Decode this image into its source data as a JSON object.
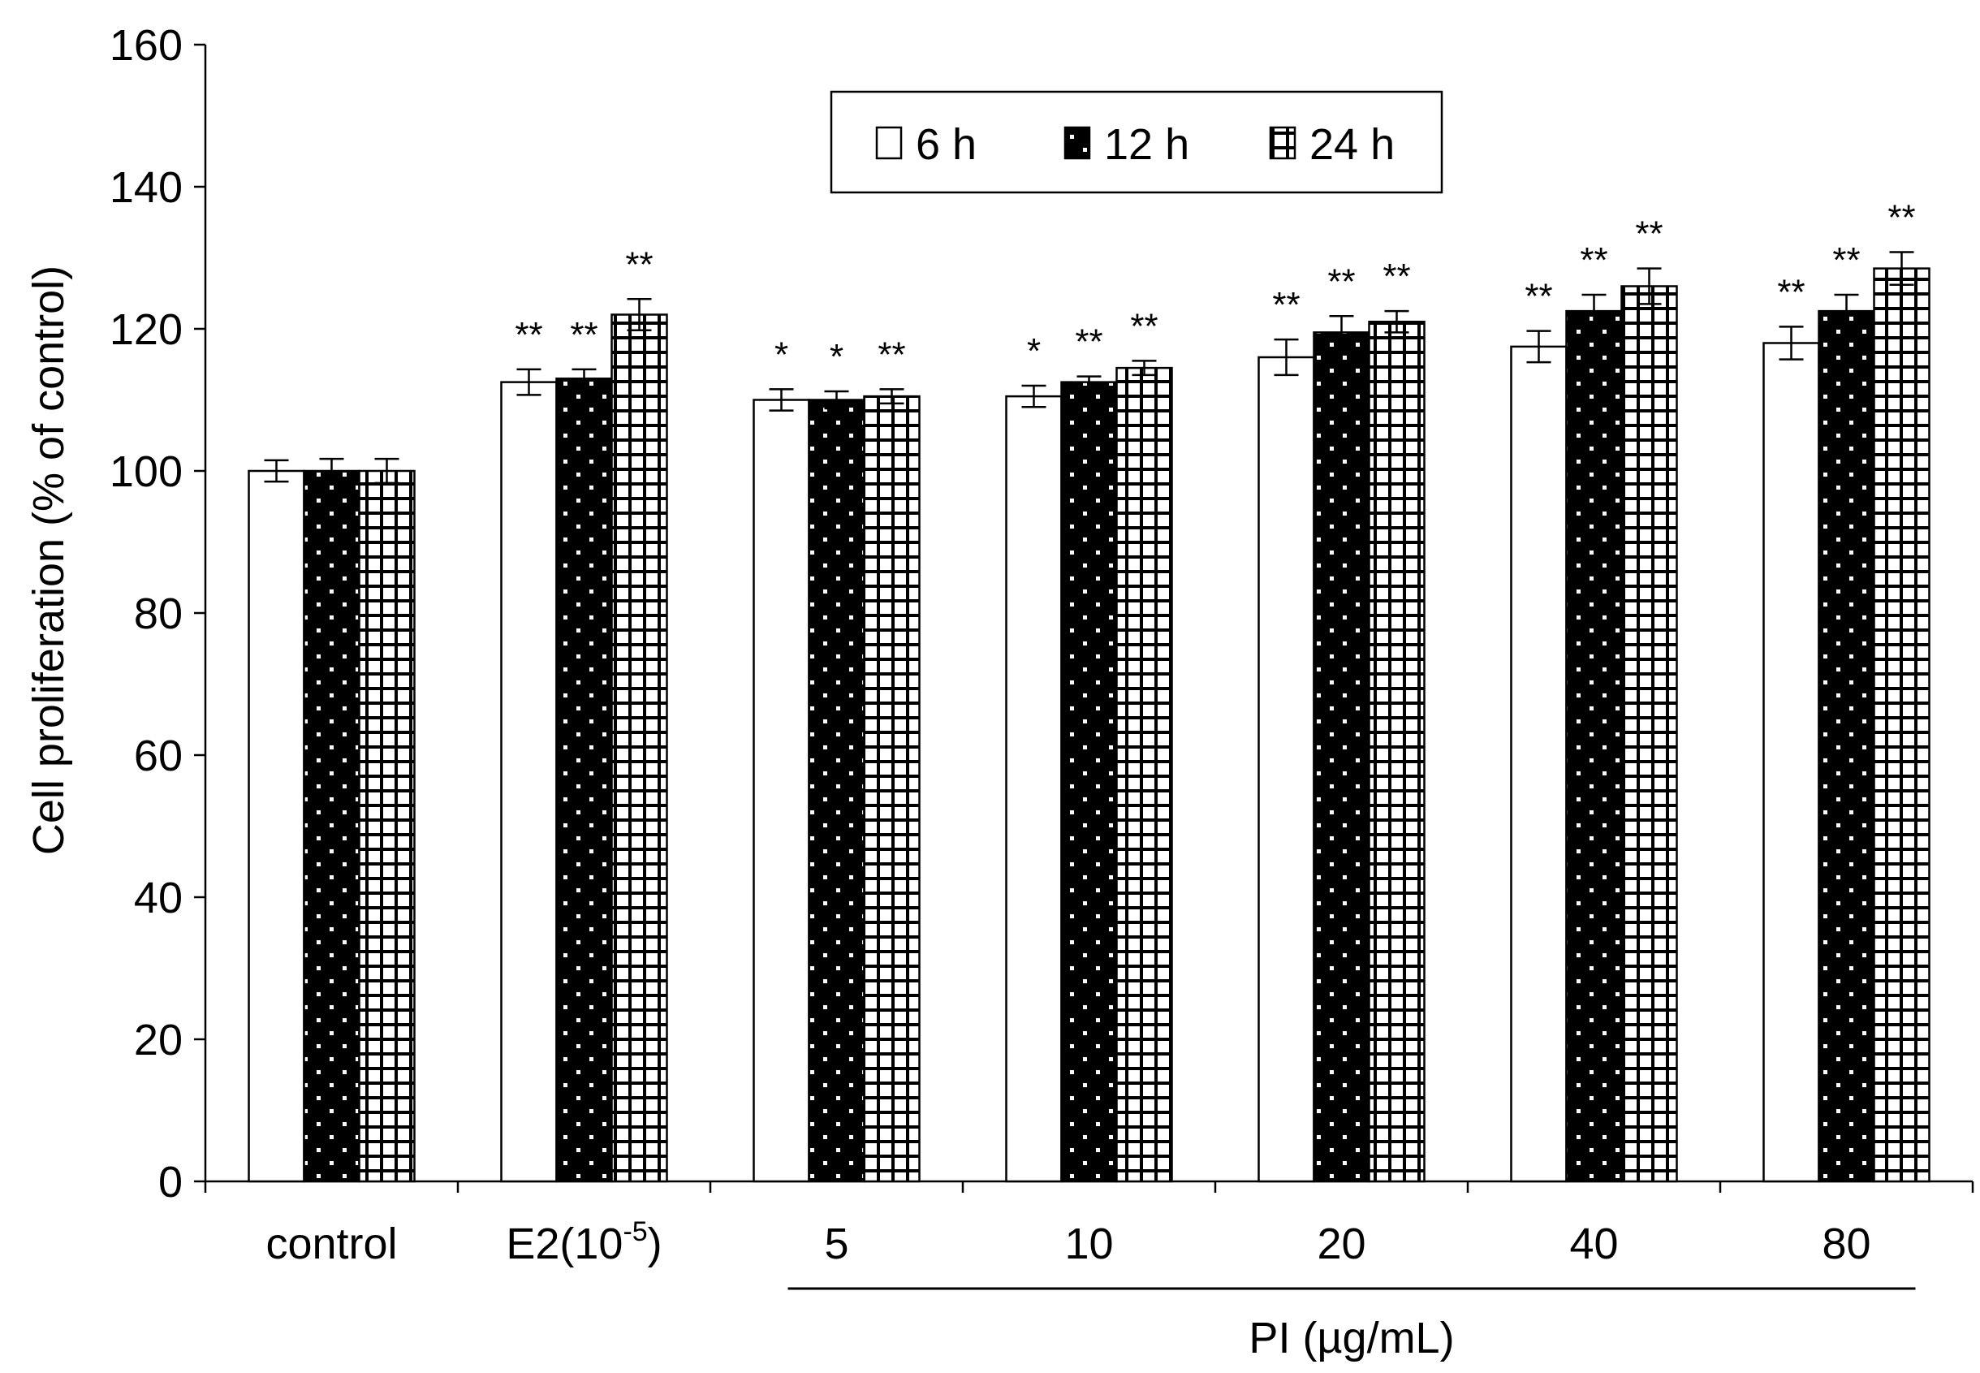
{
  "chart_data": {
    "type": "bar",
    "ylabel": "Cell proliferation (% of control)",
    "xlabel": "PI (µg/mL)",
    "ylim": [
      0,
      160
    ],
    "yticks": [
      0,
      20,
      40,
      60,
      80,
      100,
      120,
      140,
      160
    ],
    "grid": false,
    "legend_position": "top-center",
    "categories": [
      "control",
      "E2(10",
      "5",
      "10",
      "20",
      "40",
      "80"
    ],
    "category_superscript": {
      "index": 1,
      "sup": "-5",
      "suffix": ")"
    },
    "group_bracket": {
      "from": 2,
      "to": 6,
      "label": "PI (µg/mL)"
    },
    "series": [
      {
        "name": "6 h",
        "pattern": "white",
        "values": [
          100,
          112.5,
          110,
          110.5,
          116,
          117.5,
          118
        ],
        "errors": [
          1.5,
          1.8,
          1.5,
          1.5,
          2.5,
          2.2,
          2.3
        ],
        "significance": [
          "",
          "**",
          "*",
          "*",
          "**",
          "**",
          "**"
        ]
      },
      {
        "name": "12 h",
        "pattern": "black-dots",
        "values": [
          100,
          113,
          110,
          112.5,
          119.5,
          122.5,
          122.5
        ],
        "errors": [
          1.7,
          1.3,
          1.2,
          0.8,
          2.3,
          2.3,
          2.3
        ],
        "significance": [
          "",
          "**",
          "*",
          "**",
          "**",
          "**",
          "**"
        ]
      },
      {
        "name": "24 h",
        "pattern": "grid",
        "values": [
          100,
          122,
          110.5,
          114.5,
          121,
          126,
          128.5
        ],
        "errors": [
          1.7,
          2.2,
          1.0,
          1.0,
          1.5,
          2.5,
          2.3
        ],
        "significance": [
          "",
          "**",
          "**",
          "**",
          "**",
          "**",
          "**"
        ]
      }
    ]
  }
}
